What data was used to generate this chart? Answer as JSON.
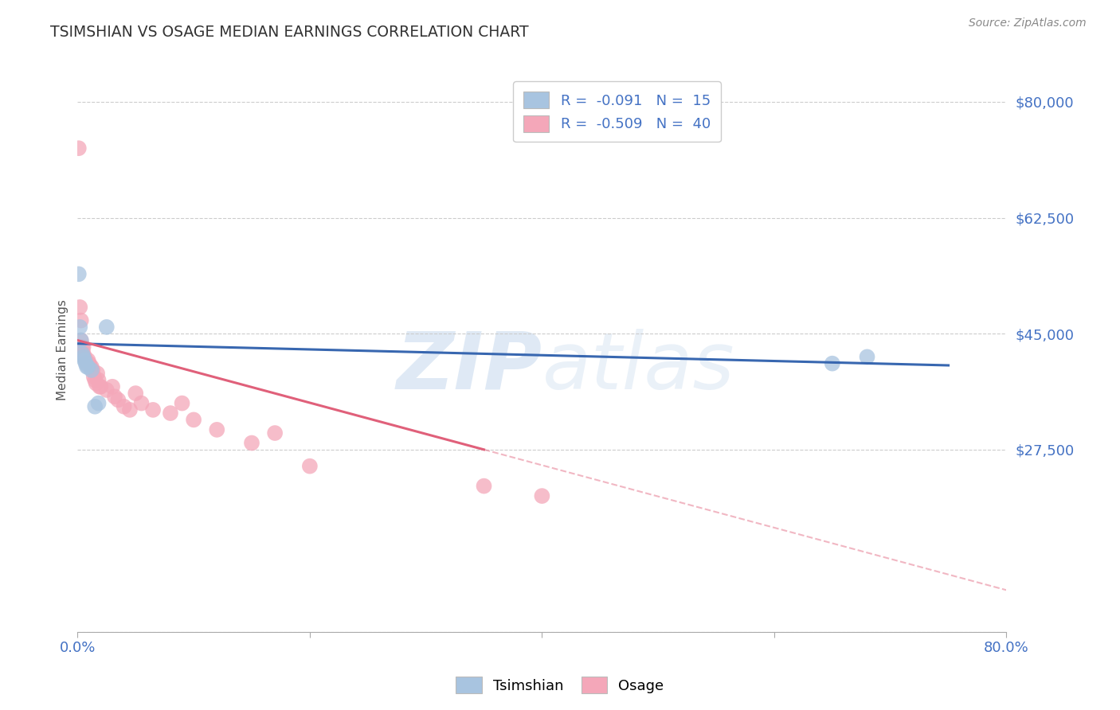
{
  "title": "TSIMSHIAN VS OSAGE MEDIAN EARNINGS CORRELATION CHART",
  "source": "Source: ZipAtlas.com",
  "ylabel": "Median Earnings",
  "yticks": [
    0,
    27500,
    45000,
    62500,
    80000
  ],
  "ytick_labels": [
    "",
    "$27,500",
    "$45,000",
    "$62,500",
    "$80,000"
  ],
  "xmin": 0.0,
  "xmax": 0.8,
  "ymin": 0,
  "ymax": 85000,
  "watermark": "ZIPatlas",
  "tsimshian_color": "#a8c4e0",
  "osage_color": "#f4a7b9",
  "tsimshian_line_color": "#3867b0",
  "osage_line_color": "#e0607a",
  "tsimshian_x": [
    0.001,
    0.002,
    0.003,
    0.004,
    0.005,
    0.006,
    0.007,
    0.008,
    0.009,
    0.012,
    0.015,
    0.018,
    0.025,
    0.65,
    0.68
  ],
  "tsimshian_y": [
    54000,
    46000,
    44000,
    42000,
    41500,
    41000,
    40500,
    40000,
    40000,
    39500,
    34000,
    34500,
    46000,
    40500,
    41500
  ],
  "osage_x": [
    0.001,
    0.002,
    0.003,
    0.003,
    0.004,
    0.005,
    0.005,
    0.006,
    0.007,
    0.008,
    0.009,
    0.01,
    0.011,
    0.012,
    0.013,
    0.014,
    0.015,
    0.016,
    0.017,
    0.018,
    0.019,
    0.02,
    0.025,
    0.03,
    0.032,
    0.035,
    0.04,
    0.045,
    0.05,
    0.055,
    0.065,
    0.08,
    0.09,
    0.1,
    0.12,
    0.15,
    0.17,
    0.2,
    0.35,
    0.4
  ],
  "osage_y": [
    73000,
    49000,
    47000,
    44000,
    43000,
    43000,
    42000,
    41500,
    41000,
    40500,
    41000,
    40500,
    40000,
    40000,
    39500,
    38500,
    38000,
    37500,
    39000,
    38000,
    37000,
    37000,
    36500,
    37000,
    35500,
    35000,
    34000,
    33500,
    36000,
    34500,
    33500,
    33000,
    34500,
    32000,
    30500,
    28500,
    30000,
    25000,
    22000,
    20500
  ],
  "background_color": "#ffffff",
  "grid_color": "#cccccc",
  "tsimshian_R": -0.091,
  "osage_R": -0.509,
  "tsimshian_N": 15,
  "osage_N": 40
}
